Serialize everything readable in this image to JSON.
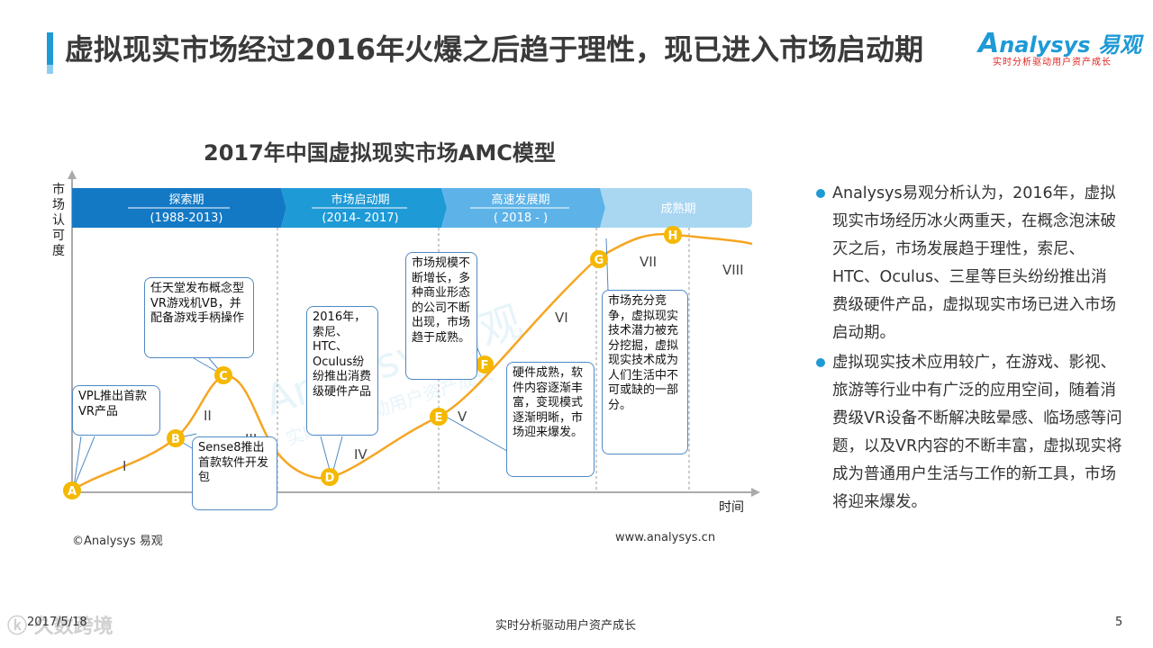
{
  "header": {
    "title": "虚拟现实市场经过2016年火爆之后趋于理性，现已进入市场启动期",
    "logo_text": "nalysys 易观",
    "logo_letter": "A",
    "logo_tagline": "实时分析驱动用户资产成长"
  },
  "diagram": {
    "title": "2017年中国虚拟现实市场AMC模型",
    "y_axis_label": "市场认可度",
    "x_axis_label": "时间",
    "phases": [
      {
        "name": "探索期",
        "period": "(1988-2013)",
        "color": "#1479c4"
      },
      {
        "name": "市场启动期",
        "period": "(2014- 2017)",
        "color": "#1e9ad6"
      },
      {
        "name": "高速发展期",
        "period": "( 2018 -    )",
        "color": "#5db3e8"
      },
      {
        "name": "成熟期",
        "period": "",
        "color": "#a9d7f2"
      }
    ],
    "stages": [
      "I",
      "II",
      "III",
      "IV",
      "V",
      "VI",
      "VII",
      "VIII"
    ],
    "points": [
      "A",
      "B",
      "C",
      "D",
      "E",
      "F",
      "G",
      "H"
    ],
    "callouts": [
      "VPL推出首款VR产品",
      "任天堂发布概念型VR游戏机VB，并配备游戏手柄操作",
      "Sense8推出首款软件开发包",
      "2016年，索尼、HTC、Oculus纷纷推出消费级硬件产品",
      "市场规模不断增长，多种商业形态的公司不断出现，市场趋于成熟。",
      "硬件成熟，软件内容逐渐丰富，变现模式逐渐明晰，市场迎来爆发。",
      "市场充分竞争，虚拟现实技术潜力被充分挖掘，虚拟现实技术成为人们生活中不可或缺的一部分。"
    ],
    "watermark_text": "Analysys易观",
    "watermark_tagline": "实时分析驱动用户资产成长",
    "curve_color": "#f5a623",
    "point_color": "#f5b800"
  },
  "analysis": {
    "items": [
      "Analysys易观分析认为，2016年，虚拟现实市场经历冰火两重天，在概念泡沫破灭之后，市场发展趋于理性，索尼、HTC、Oculus、三星等巨头纷纷推出消费级硬件产品，虚拟现实市场已进入市场启动期。",
      "虚拟现实技术应用较广，在游戏、影视、旅游等行业中有广泛的应用空间，随着消费级VR设备不断解决眩晕感、临场感等问题，以及VR内容的不断丰富，虚拟现实将成为普通用户生活与工作的新工具，市场将迎来爆发。"
    ]
  },
  "footer": {
    "copyright": "©Analysys 易观",
    "website": "www.analysys.cn",
    "date": "2017/5/18",
    "slogan": "实时分析驱动用户资产成长",
    "page": "5",
    "watermark": "ⓚ 久数跨境"
  }
}
